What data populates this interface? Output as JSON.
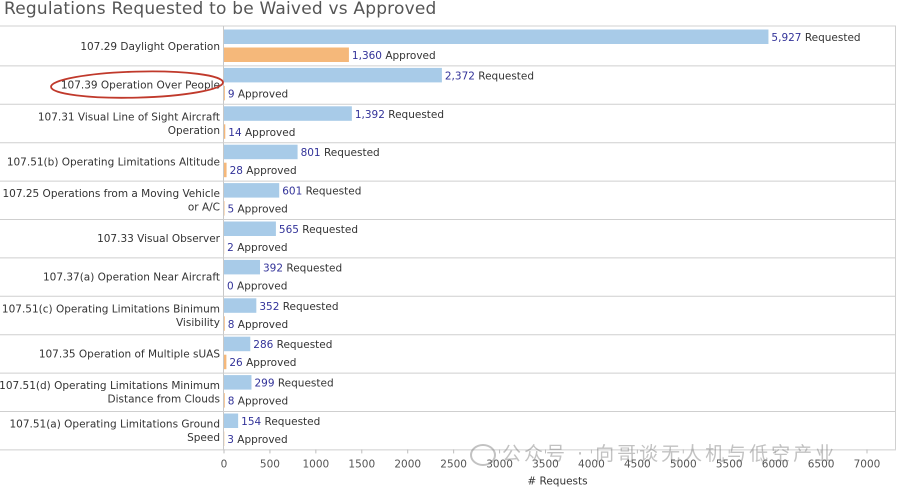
{
  "title": "Regulations Requested to be Waived vs Approved",
  "chart_data": {
    "type": "bar",
    "orientation": "horizontal",
    "title": "Regulations Requested to be Waived vs Approved",
    "xlabel": "# Requests",
    "ylabel": "",
    "xlim": [
      0,
      7000
    ],
    "xticks": [
      0,
      500,
      1000,
      1500,
      2000,
      2500,
      3000,
      3500,
      4000,
      4500,
      5000,
      5500,
      6000,
      6500,
      7000
    ],
    "grid": false,
    "categories": [
      "107.29 Daylight Operation",
      "107.39 Operation Over People",
      "107.31 Visual Line of Sight Aircraft Operation",
      "107.51(b) Operating Limitations Altitude",
      "107.25 Operations from a Moving Vehicle or A/C",
      "107.33 Visual Observer",
      "107.37(a) Operation Near Aircraft",
      "107.51(c) Operating Limitations Binimum Visibility",
      "107.35 Operation of Multiple sUAS",
      "107.51(d) Operating Limitations Minimum Distance from Clouds",
      "107.51(a) Operating Limitations Ground Speed"
    ],
    "category_lines": [
      [
        "107.29 Daylight Operation"
      ],
      [
        "107.39 Operation Over People"
      ],
      [
        "107.31 Visual Line of Sight Aircraft",
        "Operation"
      ],
      [
        "107.51(b) Operating Limitations Altitude"
      ],
      [
        "107.25 Operations from a Moving Vehicle",
        "or A/C"
      ],
      [
        "107.33 Visual Observer"
      ],
      [
        "107.37(a) Operation Near Aircraft"
      ],
      [
        "107.51(c) Operating Limitations Binimum",
        "Visibility"
      ],
      [
        "107.35 Operation of Multiple sUAS"
      ],
      [
        "107.51(d) Operating Limitations Minimum",
        "Distance from Clouds"
      ],
      [
        "107.51(a) Operating Limitations Ground",
        "Speed"
      ]
    ],
    "series": [
      {
        "name": "Requested",
        "color": "#a8cbe8",
        "values": [
          5927,
          2372,
          1392,
          801,
          601,
          565,
          392,
          352,
          286,
          299,
          154
        ],
        "labels": [
          "5,927",
          "2,372",
          "1,392",
          "801",
          "601",
          "565",
          "392",
          "352",
          "286",
          "299",
          "154"
        ]
      },
      {
        "name": "Approved",
        "color": "#f5b87a",
        "values": [
          1360,
          9,
          14,
          28,
          5,
          2,
          0,
          8,
          26,
          8,
          3
        ],
        "labels": [
          "1,360",
          "9",
          "14",
          "28",
          "5",
          "2",
          "0",
          "8",
          "26",
          "8",
          "3"
        ]
      }
    ],
    "highlighted_category": "107.39 Operation Over People",
    "highlight_color": "#c0392b",
    "number_color": "#333399",
    "text_color": "#333333"
  },
  "watermark": "公众号 · 向哥谈无人机与低空产业"
}
